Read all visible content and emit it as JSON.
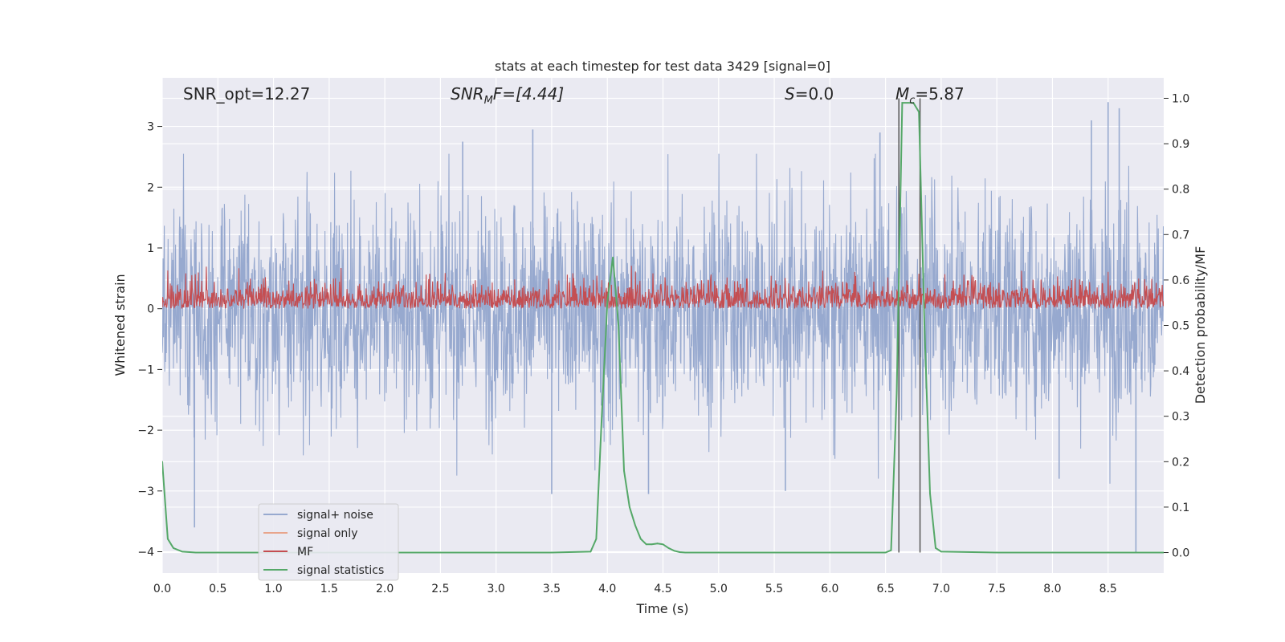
{
  "chart_data": {
    "type": "line",
    "title": "stats at each timestep for test data 3429 [signal=0]",
    "xlabel": "Time (s)",
    "ylabel": "Whitened strain",
    "ylabel_right": "Detection probability/MF",
    "xlim": [
      0.0,
      9.0
    ],
    "ylim": [
      -4.35,
      3.8
    ],
    "ylim_right": [
      -0.045,
      1.045
    ],
    "grid": true,
    "legend_placement": "lower-left",
    "x_ticks": [
      "0.0",
      "0.5",
      "1.0",
      "1.5",
      "2.0",
      "2.5",
      "3.0",
      "3.5",
      "4.0",
      "4.5",
      "5.0",
      "5.5",
      "6.0",
      "6.5",
      "7.0",
      "7.5",
      "8.0",
      "8.5"
    ],
    "y_ticks": [
      "−4",
      "−3",
      "−2",
      "−1",
      "0",
      "1",
      "2",
      "3"
    ],
    "y_ticks_right": [
      "0.0",
      "0.1",
      "0.2",
      "0.3",
      "0.4",
      "0.5",
      "0.6",
      "0.7",
      "0.8",
      "0.9",
      "1.0"
    ],
    "annotations": {
      "snr_opt": "SNR_opt=12.27",
      "snr_mf_main": "SNR",
      "snr_mf_sub": "M",
      "snr_mf_rest": "F=[4.44]",
      "s_main": "S",
      "s_rest": "=0.0",
      "mc_main": "M",
      "mc_sub": "c",
      "mc_rest": "=5.87"
    },
    "vertical_lines_x": [
      6.62,
      6.81
    ],
    "series": [
      {
        "name": "signal+ noise",
        "color": "#97a9cf",
        "kind": "noise",
        "axis": "left",
        "envelope": {
          "typical_amplitude": 1.6,
          "max_positive": 3.4,
          "min_negative": -4.0
        },
        "spikes": [
          {
            "x": 0.29,
            "y": -3.6
          },
          {
            "x": 2.7,
            "y": 2.75
          },
          {
            "x": 3.33,
            "y": 2.95
          },
          {
            "x": 6.45,
            "y": 2.9
          },
          {
            "x": 8.5,
            "y": 3.4
          },
          {
            "x": 8.6,
            "y": 3.3
          },
          {
            "x": 8.35,
            "y": 3.1
          },
          {
            "x": 8.75,
            "y": -4.0
          },
          {
            "x": 8.06,
            "y": -2.8
          },
          {
            "x": 5.6,
            "y": -3.0
          },
          {
            "x": 3.5,
            "y": -3.05
          },
          {
            "x": 4.37,
            "y": -3.05
          }
        ]
      },
      {
        "name": "signal only",
        "color": "#e8a58c",
        "kind": "flat",
        "axis": "left",
        "values": []
      },
      {
        "name": "MF",
        "color": "#c44e52",
        "kind": "mf",
        "axis": "left",
        "range": [
          0.0,
          0.85
        ]
      },
      {
        "name": "signal statistics",
        "color": "#55a868",
        "kind": "line",
        "axis": "right",
        "x": [
          0.0,
          0.05,
          0.1,
          0.18,
          0.3,
          1.0,
          2.0,
          3.0,
          3.5,
          3.85,
          3.9,
          3.95,
          4.0,
          4.05,
          4.1,
          4.15,
          4.2,
          4.25,
          4.3,
          4.35,
          4.4,
          4.45,
          4.5,
          4.55,
          4.6,
          4.65,
          4.7,
          5.0,
          6.0,
          6.5,
          6.55,
          6.6,
          6.65,
          6.7,
          6.75,
          6.8,
          6.85,
          6.9,
          6.95,
          7.0,
          7.5,
          8.0,
          8.5,
          9.0
        ],
        "y": [
          0.2,
          0.03,
          0.01,
          0.002,
          0.0,
          0.0,
          0.0,
          0.0,
          0.0,
          0.002,
          0.03,
          0.3,
          0.55,
          0.65,
          0.5,
          0.18,
          0.1,
          0.06,
          0.03,
          0.018,
          0.018,
          0.02,
          0.018,
          0.01,
          0.004,
          0.001,
          0.0,
          0.0,
          0.0,
          0.0,
          0.005,
          0.35,
          0.99,
          0.99,
          0.99,
          0.97,
          0.5,
          0.13,
          0.01,
          0.002,
          0.0,
          0.0,
          0.0,
          0.0
        ]
      }
    ]
  }
}
